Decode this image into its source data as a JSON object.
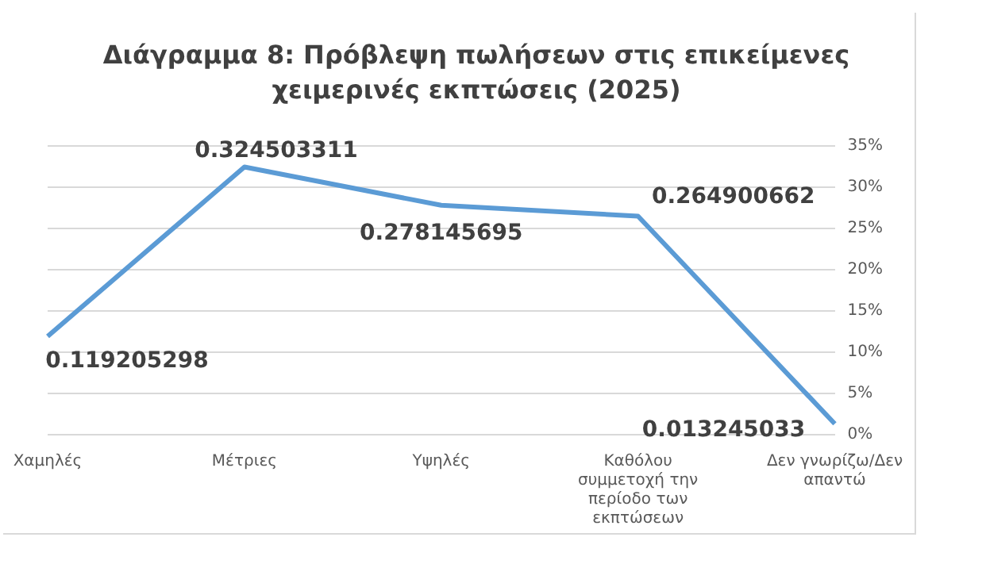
{
  "chart_data": {
    "type": "line",
    "title": "Διάγραμμα 8: Πρόβλεψη πωλήσεων στις επικείμενες χειμερινές εκπτώσεις (2025)",
    "categories": [
      "Χαμηλές",
      "Μέτριες",
      "Υψηλές",
      "Καθόλου συμμετοχή την περίοδο των εκπτώσεων",
      "Δεν γνωρίζω/Δεν απαντώ"
    ],
    "series": [
      {
        "color": "#5b9bd5",
        "values": [
          0.119205298,
          0.324503311,
          0.278145695,
          0.264900662,
          0.013245033
        ]
      }
    ],
    "data_labels": true,
    "ylim": [
      0,
      0.35
    ],
    "yticks": [
      {
        "value": 0,
        "label": "0%"
      },
      {
        "value": 0.05,
        "label": "5%"
      },
      {
        "value": 0.1,
        "label": "10%"
      },
      {
        "value": 0.15,
        "label": "15%"
      },
      {
        "value": 0.2,
        "label": "20%"
      },
      {
        "value": 0.25,
        "label": "25%"
      },
      {
        "value": 0.3,
        "label": "30%"
      },
      {
        "value": 0.35,
        "label": "35%"
      }
    ],
    "grid": "y",
    "legend": false,
    "marker": "none",
    "line_style": "solid"
  }
}
